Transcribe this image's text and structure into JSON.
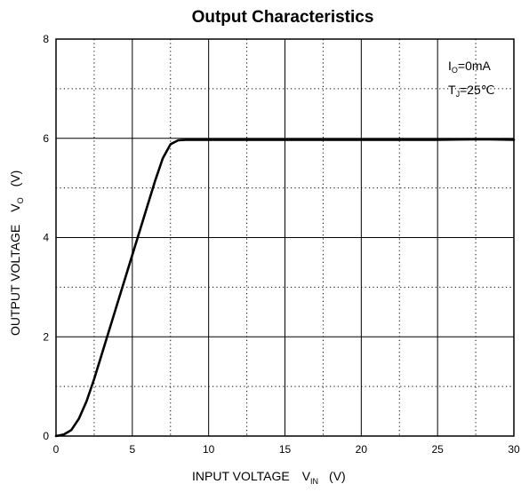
{
  "chart_data": {
    "type": "line",
    "title": "Output Characteristics",
    "xlabel": {
      "main": "INPUT VOLTAGE",
      "symbol": "V",
      "subscript": "IN",
      "unit": "(V)"
    },
    "ylabel": {
      "main": "OUTPUT VOLTAGE",
      "symbol": "V",
      "subscript": "O",
      "unit": "(V)"
    },
    "xlim": [
      0,
      30
    ],
    "ylim": [
      0,
      8
    ],
    "x_ticks": [
      "0",
      "5",
      "10",
      "15",
      "20",
      "25",
      "30"
    ],
    "y_ticks": [
      "0",
      "2",
      "4",
      "6",
      "8"
    ],
    "grid": {
      "major": "solid",
      "minor": "dotted"
    },
    "conditions": [
      {
        "symbol": "I",
        "subscript": "O",
        "value": "=0mA"
      },
      {
        "symbol": "T",
        "subscript": "J",
        "value": "=25℃"
      }
    ],
    "series": [
      {
        "x": [
          0,
          0.5,
          1.0,
          1.5,
          2.0,
          2.5,
          3.0,
          3.5,
          4.0,
          4.5,
          5.0,
          5.5,
          6.0,
          6.5,
          7.0,
          7.5,
          8.0,
          8.5,
          9.0,
          10,
          15,
          20,
          25,
          28,
          30
        ],
        "y": [
          0,
          0.03,
          0.12,
          0.35,
          0.7,
          1.15,
          1.65,
          2.15,
          2.65,
          3.15,
          3.65,
          4.15,
          4.65,
          5.15,
          5.6,
          5.88,
          5.96,
          5.97,
          5.97,
          5.97,
          5.97,
          5.97,
          5.97,
          5.98,
          5.97
        ]
      }
    ]
  }
}
